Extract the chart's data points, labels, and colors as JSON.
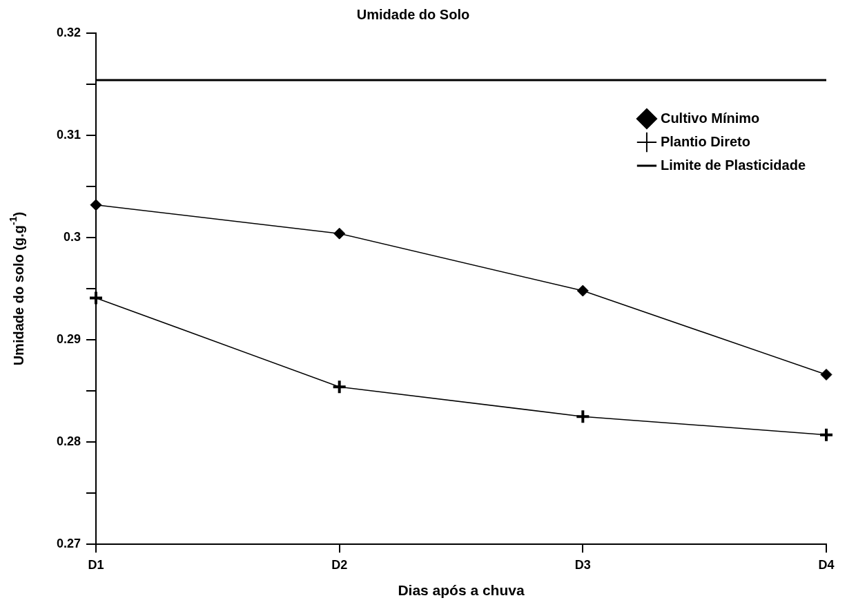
{
  "chart_data": {
    "type": "line",
    "title": "Umidade do Solo",
    "xlabel": "Dias após a chuva",
    "ylabel": "Umidade do solo (g.g$^{-1}$)",
    "categories": [
      "D1",
      "D2",
      "D3",
      "D4"
    ],
    "series": [
      {
        "name": "Cultivo Mínimo",
        "color": "#000000",
        "marker": "diamond",
        "values": [
          0.3032,
          0.3004,
          0.2948,
          0.2866
        ]
      },
      {
        "name": "Plantio Direto",
        "color": "#000000",
        "marker": "cross",
        "values": [
          0.2941,
          0.2854,
          0.2825,
          0.2807
        ]
      },
      {
        "name": "Limite de Plasticidade",
        "color": "#000000",
        "marker": "none",
        "values": [
          0.3154,
          0.3154,
          0.3154,
          0.3154
        ]
      }
    ],
    "ylim": [
      0.27,
      0.32
    ],
    "yticks": [
      0.27,
      {
        "value": 0.275,
        "label": null
      },
      0.28,
      {
        "value": 0.285,
        "label": null
      },
      0.29,
      {
        "value": 0.295,
        "label": null
      },
      {
        "value": 0.3,
        "label": "0.3"
      },
      {
        "value": 0.305,
        "label": null
      },
      0.31,
      {
        "value": 0.315,
        "label": null
      },
      0.32
    ],
    "legend": "top right"
  }
}
